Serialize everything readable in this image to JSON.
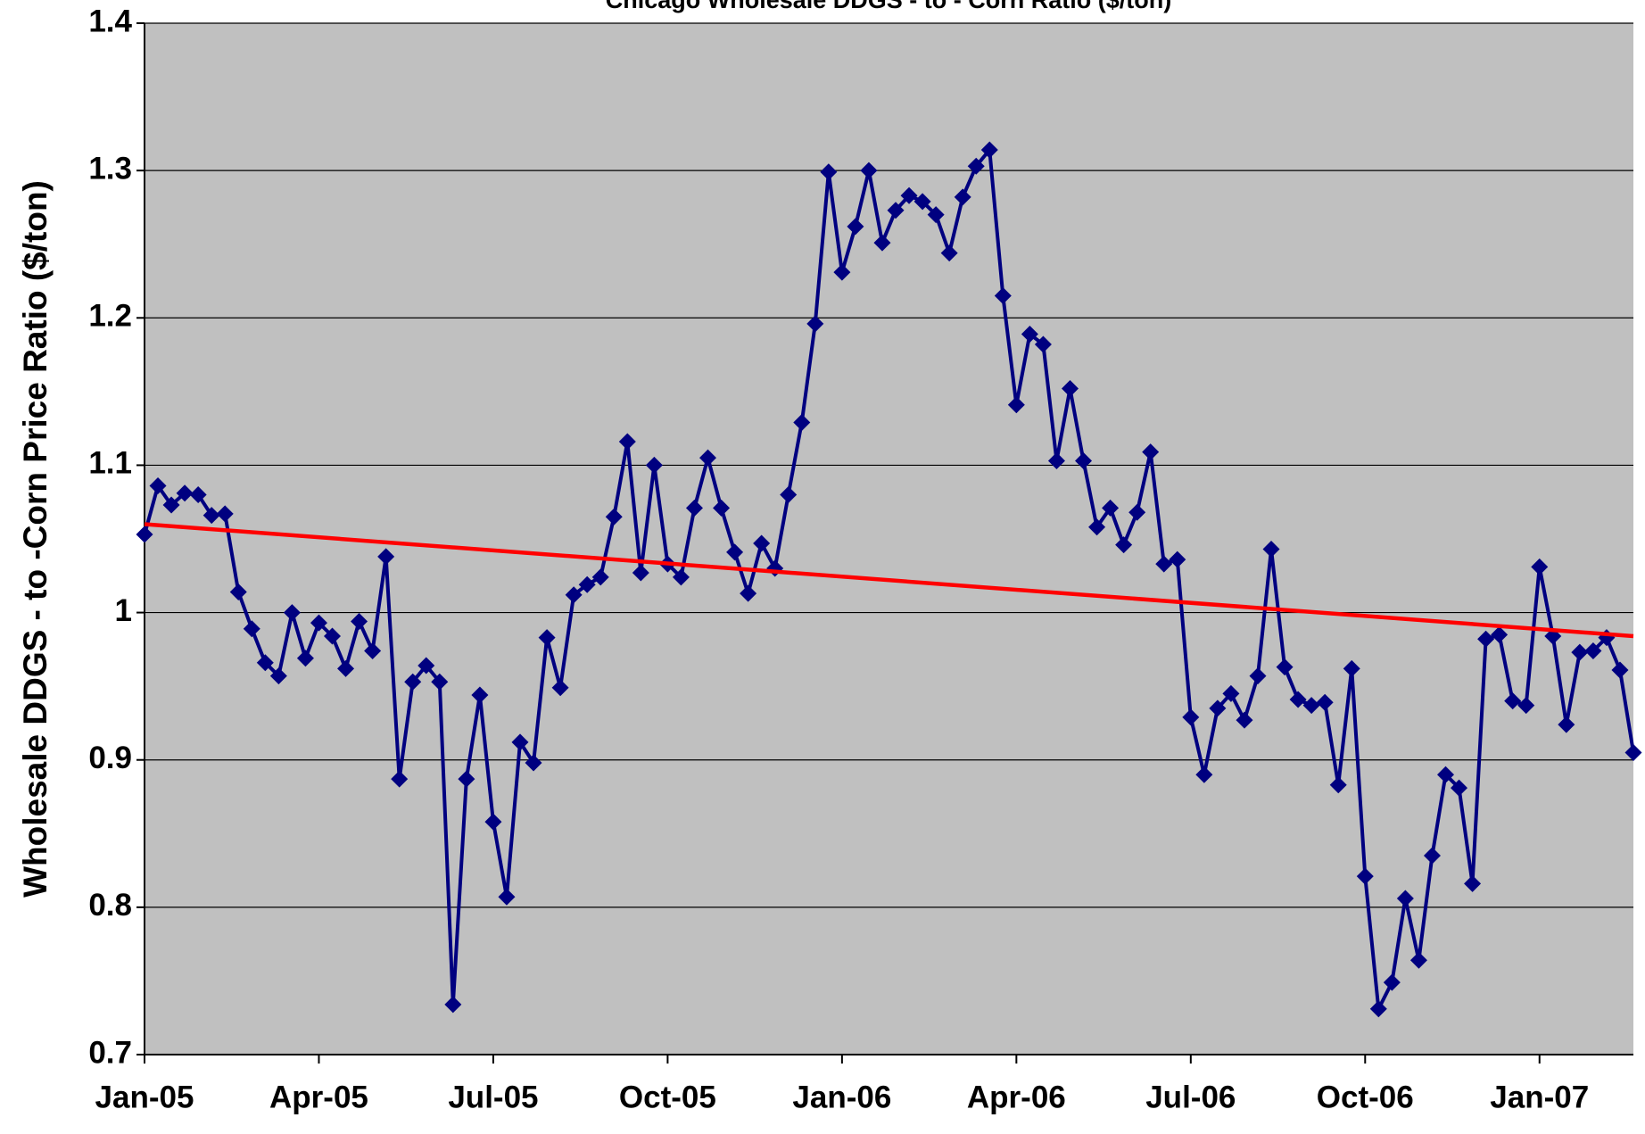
{
  "chart_data": {
    "type": "line",
    "title": "Chicago Wholesale DDGS - to - Corn Ratio ($/ton)",
    "y_label": "Wholesale DDGS - to -Corn Price Ratio ($/ton)",
    "categories": [
      "Jan-05",
      null,
      null,
      null,
      null,
      null,
      null,
      null,
      null,
      null,
      null,
      null,
      null,
      "Apr-05",
      null,
      null,
      null,
      null,
      null,
      null,
      null,
      null,
      null,
      null,
      null,
      null,
      "Jul-05",
      null,
      null,
      null,
      null,
      null,
      null,
      null,
      null,
      null,
      null,
      null,
      null,
      "Oct-05",
      null,
      null,
      null,
      null,
      null,
      null,
      null,
      null,
      null,
      null,
      null,
      null,
      "Jan-06",
      null,
      null,
      null,
      null,
      null,
      null,
      null,
      null,
      null,
      null,
      null,
      null,
      "Apr-06",
      null,
      null,
      null,
      null,
      null,
      null,
      null,
      null,
      null,
      null,
      null,
      null,
      "Jul-06",
      null,
      null,
      null,
      null,
      null,
      null,
      null,
      null,
      null,
      null,
      null,
      null,
      "Oct-06",
      null,
      null,
      null,
      null,
      null,
      null,
      null,
      null,
      null,
      null,
      null,
      null,
      "Jan-07",
      null,
      null,
      null,
      null,
      null,
      null,
      null
    ],
    "series": [
      {
        "color": "#000080",
        "values": [
          1.053,
          1.086,
          1.073,
          1.081,
          1.08,
          1.066,
          1.067,
          1.014,
          0.989,
          0.966,
          0.957,
          1.0,
          0.969,
          0.993,
          0.984,
          0.962,
          0.994,
          0.974,
          1.038,
          0.887,
          0.953,
          0.964,
          0.953,
          0.734,
          0.887,
          0.944,
          0.858,
          0.807,
          0.912,
          0.898,
          0.983,
          0.949,
          1.012,
          1.019,
          1.024,
          1.065,
          1.116,
          1.027,
          1.1,
          1.033,
          1.024,
          1.071,
          1.105,
          1.071,
          1.041,
          1.013,
          1.047,
          1.03,
          1.08,
          1.129,
          1.196,
          1.299,
          1.231,
          1.262,
          1.3,
          1.251,
          1.273,
          1.283,
          1.279,
          1.27,
          1.244,
          1.282,
          1.303,
          1.314,
          1.215,
          1.141,
          1.189,
          1.182,
          1.103,
          1.152,
          1.103,
          1.058,
          1.071,
          1.046,
          1.068,
          1.109,
          1.033,
          1.036,
          0.929,
          0.89,
          0.935,
          0.945,
          0.927,
          0.957,
          1.043,
          0.963,
          0.941,
          0.937,
          0.939,
          0.883,
          0.962,
          0.821,
          0.731,
          0.749,
          0.806,
          0.764,
          0.835,
          0.89,
          0.881,
          0.816,
          0.982,
          0.985,
          0.94,
          0.937,
          1.031,
          0.984,
          0.924,
          0.973,
          0.974,
          0.983,
          0.961,
          0.905
        ]
      }
    ],
    "trendline": {
      "color": "#ff0000",
      "values": [
        1.06,
        0.984
      ]
    },
    "ylim": [
      0.7,
      1.4
    ],
    "yticks": [
      {
        "value": 0.7,
        "label": "0.7"
      },
      {
        "value": 0.8,
        "label": "0.8"
      },
      {
        "value": 0.9,
        "label": "0.9"
      },
      1,
      {
        "value": 1.1,
        "label": "1.1"
      },
      {
        "value": 1.2,
        "label": "1.2"
      },
      {
        "value": 1.3,
        "label": "1.3"
      },
      {
        "value": 1.4,
        "label": "1.4"
      }
    ],
    "grid": true,
    "background": "#c0c0c0"
  }
}
